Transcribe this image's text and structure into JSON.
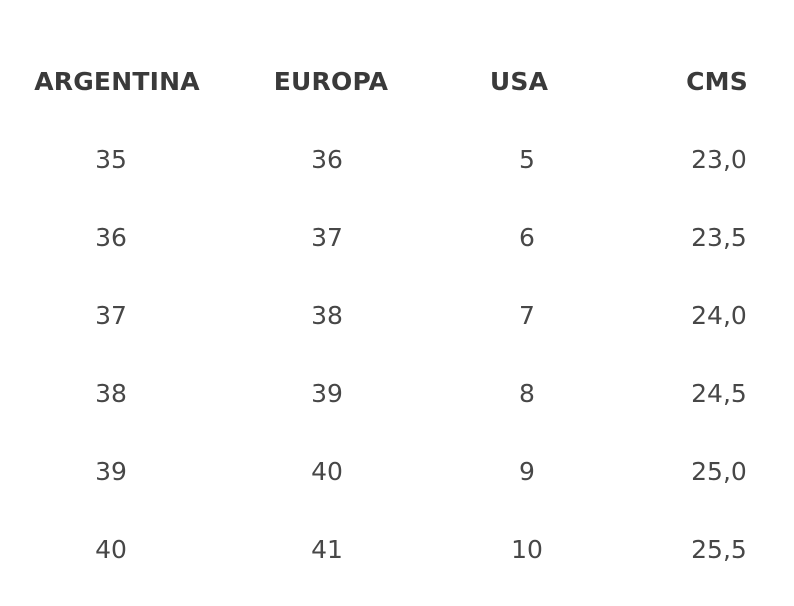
{
  "table": {
    "header": [
      "ARGENTINA",
      "EUROPA",
      "USA",
      "CMS"
    ],
    "rows": [
      [
        "35",
        "36",
        "5",
        "23,0"
      ],
      [
        "36",
        "37",
        "6",
        "23,5"
      ],
      [
        "37",
        "38",
        "7",
        "24,0"
      ],
      [
        "38",
        "39",
        "8",
        "24,5"
      ],
      [
        "39",
        "40",
        "9",
        "25,0"
      ],
      [
        "40",
        "41",
        "10",
        "25,5"
      ]
    ]
  }
}
